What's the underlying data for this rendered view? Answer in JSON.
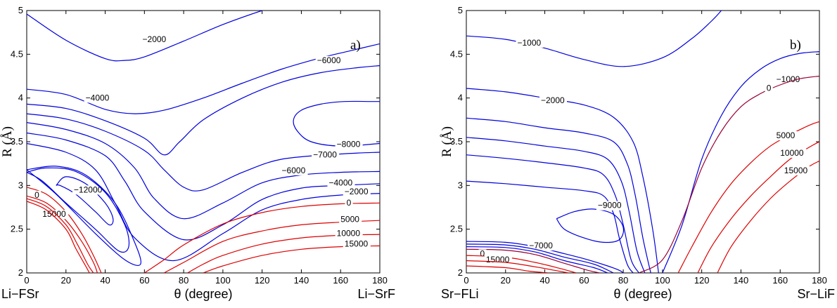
{
  "colors": {
    "negative_contour": "#0000dd",
    "positive_contour": "#dd0000",
    "zero_contour_b": "#990033"
  },
  "chart_data": [
    {
      "type": "line",
      "panel_label": "a)",
      "xlabel": "θ (degree)",
      "ylabel": "R (Å)",
      "xlim": [
        0,
        180
      ],
      "ylim": [
        2,
        5
      ],
      "x_ticks": [
        0,
        20,
        40,
        60,
        80,
        100,
        120,
        140,
        160,
        180
      ],
      "y_ticks": [
        2,
        2.5,
        3,
        3.5,
        4,
        4.5,
        5
      ],
      "left_corner_label": "Li−FSr",
      "right_corner_label": "Li−SrF",
      "series": [
        {
          "name": "−2000",
          "label": "−2000",
          "label_at": [
            59,
            4.64
          ],
          "x": [
            0,
            20,
            40,
            50,
            60,
            80,
            100,
            120,
            135
          ],
          "y": [
            4.96,
            4.66,
            4.45,
            4.43,
            4.47,
            4.65,
            4.84,
            5.0,
            5.1
          ]
        },
        {
          "name": "−4000",
          "label": "−4000",
          "label_at": [
            30,
            3.97
          ],
          "x": [
            0,
            20,
            40,
            55,
            70,
            90,
            110,
            130,
            150,
            165,
            180
          ],
          "y": [
            4.1,
            4.04,
            3.87,
            3.82,
            3.86,
            4.0,
            4.17,
            4.33,
            4.46,
            4.54,
            4.62
          ]
        },
        {
          "name": "−6000",
          "label": "−6000",
          "label_at": [
            148,
            4.4
          ],
          "x": [
            0,
            20,
            40,
            60,
            70,
            78,
            90,
            110,
            130,
            150,
            170,
            180
          ],
          "y": [
            3.93,
            3.88,
            3.74,
            3.54,
            3.35,
            3.5,
            3.75,
            4.0,
            4.18,
            4.29,
            4.35,
            4.37
          ]
        },
        {
          "name": "−8000",
          "label": "−8000",
          "label_at": [
            158,
            3.44
          ],
          "x": [
            180,
            160,
            145,
            138,
            136,
            140,
            150,
            162,
            175,
            180
          ],
          "y": [
            3.48,
            3.45,
            3.5,
            3.62,
            3.75,
            3.86,
            3.93,
            3.96,
            3.96,
            3.96
          ]
        },
        {
          "name": "−7000 (a)",
          "label": "−7000",
          "label_at": [
            146,
            3.32
          ],
          "x": [
            0,
            20,
            40,
            60,
            70,
            80,
            90,
            110,
            130,
            160,
            180
          ],
          "y": [
            3.82,
            3.76,
            3.62,
            3.4,
            3.18,
            2.98,
            2.95,
            3.15,
            3.3,
            3.36,
            3.38
          ]
        },
        {
          "name": "−6000 (b)",
          "label": "−6000",
          "label_at": [
            130,
            3.14
          ],
          "x": [
            0,
            20,
            40,
            55,
            65,
            80,
            100,
            120,
            140,
            160,
            180
          ],
          "y": [
            3.72,
            3.64,
            3.48,
            3.2,
            2.85,
            2.62,
            2.8,
            3.03,
            3.12,
            3.15,
            3.16
          ]
        },
        {
          "name": "−4000 (b)",
          "label": "−4000",
          "label_at": [
            154,
            3.0
          ],
          "x": [
            0,
            20,
            40,
            50,
            60,
            80,
            100,
            120,
            140,
            160,
            180
          ],
          "y": [
            3.6,
            3.52,
            3.34,
            3.05,
            2.7,
            2.38,
            2.55,
            2.84,
            2.97,
            3.0,
            3.02
          ]
        },
        {
          "name": "−2000 (b)",
          "label": "−2000",
          "label_at": [
            162,
            2.9
          ],
          "x": [
            0,
            20,
            35,
            45,
            55,
            75,
            100,
            120,
            140,
            160,
            180
          ],
          "y": [
            3.48,
            3.38,
            3.18,
            2.8,
            2.4,
            2.14,
            2.45,
            2.72,
            2.84,
            2.89,
            2.91
          ]
        },
        {
          "name": "−12000",
          "label": "−12000",
          "label_at": [
            24,
            2.92
          ],
          "x": [
            15,
            20,
            30,
            40,
            44,
            42,
            35,
            25,
            17,
            15
          ],
          "y": [
            3.0,
            3.1,
            3.02,
            2.8,
            2.62,
            2.55,
            2.7,
            2.9,
            3.0,
            3.0
          ]
        },
        {
          "name": "inner1",
          "label": "",
          "x": [
            0,
            10,
            25,
            40,
            50,
            52,
            47,
            35,
            20,
            8,
            0
          ],
          "y": [
            3.15,
            3.2,
            3.16,
            2.92,
            2.55,
            2.3,
            2.25,
            2.5,
            2.8,
            3.05,
            3.15
          ]
        },
        {
          "name": "inner2",
          "label": "",
          "x": [
            0,
            15,
            30,
            45,
            55,
            58,
            50,
            35,
            15,
            0
          ],
          "y": [
            3.18,
            3.22,
            3.12,
            2.8,
            2.35,
            2.1,
            2.15,
            2.45,
            2.9,
            3.18
          ]
        },
        {
          "name": "0 (a)",
          "label": "0",
          "label_at": [
            163,
            2.77
          ],
          "x": [
            60,
            70,
            80,
            100,
            120,
            140,
            160,
            180
          ],
          "y": [
            2.0,
            2.15,
            2.32,
            2.56,
            2.69,
            2.76,
            2.79,
            2.8
          ]
        },
        {
          "name": "5000 (a)",
          "label": "5000",
          "label_at": [
            160,
            2.58
          ],
          "x": [
            70,
            80,
            100,
            120,
            140,
            160,
            180
          ],
          "y": [
            2.0,
            2.12,
            2.36,
            2.48,
            2.55,
            2.58,
            2.6
          ]
        },
        {
          "name": "10000 (a)",
          "label": "10000",
          "label_at": [
            158,
            2.42
          ],
          "x": [
            82,
            90,
            100,
            120,
            140,
            160,
            180
          ],
          "y": [
            2.0,
            2.1,
            2.2,
            2.33,
            2.4,
            2.43,
            2.44
          ]
        },
        {
          "name": "15000 (a)",
          "label": "15000",
          "label_at": [
            162,
            2.3
          ],
          "x": [
            90,
            100,
            120,
            140,
            160,
            180
          ],
          "y": [
            2.0,
            2.08,
            2.2,
            2.27,
            2.3,
            2.31
          ]
        },
        {
          "name": "0 (left)",
          "label": "0",
          "label_at": [
            4,
            2.86
          ],
          "x": [
            0,
            10,
            20,
            28,
            34,
            38
          ],
          "y": [
            2.98,
            2.9,
            2.7,
            2.45,
            2.2,
            2.0
          ]
        },
        {
          "name": "15000 (left)",
          "label": "15000",
          "label_at": [
            8,
            2.64
          ],
          "x": [
            0,
            10,
            20,
            28,
            34,
            36
          ],
          "y": [
            2.88,
            2.8,
            2.6,
            2.36,
            2.12,
            2.0
          ]
        },
        {
          "name": "left3",
          "label": "",
          "x": [
            0,
            10,
            20,
            26,
            31,
            34
          ],
          "y": [
            2.85,
            2.76,
            2.55,
            2.32,
            2.1,
            2.0
          ]
        },
        {
          "name": "left4",
          "label": "",
          "x": [
            0,
            10,
            20,
            25,
            30,
            32
          ],
          "y": [
            2.82,
            2.72,
            2.5,
            2.28,
            2.08,
            2.0
          ]
        }
      ]
    },
    {
      "type": "line",
      "panel_label": "b)",
      "xlabel": "θ (degree)",
      "ylabel": "R (Å)",
      "xlim": [
        0,
        180
      ],
      "ylim": [
        2,
        5
      ],
      "x_ticks": [
        0,
        20,
        40,
        60,
        80,
        100,
        120,
        140,
        160,
        180
      ],
      "y_ticks": [
        2,
        2.5,
        3,
        3.5,
        4,
        4.5,
        5
      ],
      "left_corner_label": "Sr−FLi",
      "right_corner_label": "Sr−LiF",
      "series": [
        {
          "name": "−1000 (top)",
          "label": "−1000",
          "label_at": [
            26,
            4.6
          ],
          "x": [
            0,
            20,
            40,
            60,
            80,
            100,
            115,
            125,
            130
          ],
          "y": [
            4.71,
            4.67,
            4.57,
            4.44,
            4.36,
            4.46,
            4.68,
            4.88,
            5.0
          ]
        },
        {
          "name": "−1000 (right)",
          "label": "−1000",
          "label_at": [
            158,
            4.18
          ],
          "x": [
            100,
            110,
            120,
            130,
            140,
            150,
            160,
            170,
            180
          ],
          "y": [
            2.0,
            2.55,
            3.3,
            3.8,
            4.13,
            4.33,
            4.45,
            4.51,
            4.53
          ]
        },
        {
          "name": "−2000",
          "label": "−2000",
          "label_at": [
            38,
            3.94
          ],
          "x": [
            0,
            20,
            40,
            60,
            75,
            85,
            90,
            95,
            98
          ],
          "y": [
            4.11,
            4.07,
            4.0,
            3.92,
            3.78,
            3.5,
            3.1,
            2.5,
            2.0
          ]
        },
        {
          "name": "c3",
          "label": "",
          "x": [
            0,
            20,
            40,
            60,
            75,
            82,
            86,
            90,
            94
          ],
          "y": [
            3.77,
            3.73,
            3.66,
            3.6,
            3.5,
            3.25,
            2.9,
            2.4,
            2.0
          ]
        },
        {
          "name": "c4",
          "label": "",
          "x": [
            0,
            20,
            40,
            60,
            72,
            79,
            83,
            87,
            91
          ],
          "y": [
            3.55,
            3.51,
            3.45,
            3.39,
            3.3,
            3.05,
            2.7,
            2.25,
            2.0
          ]
        },
        {
          "name": "c5",
          "label": "",
          "x": [
            0,
            20,
            40,
            60,
            70,
            76,
            80,
            84,
            88
          ],
          "y": [
            3.35,
            3.31,
            3.26,
            3.2,
            3.12,
            2.88,
            2.55,
            2.15,
            2.0
          ]
        },
        {
          "name": "c6",
          "label": "",
          "x": [
            0,
            20,
            40,
            60,
            70,
            75,
            78,
            82,
            85
          ],
          "y": [
            3.05,
            3.02,
            2.98,
            2.94,
            2.88,
            2.68,
            2.4,
            2.1,
            2.0
          ]
        },
        {
          "name": "−9000",
          "label": "−9000",
          "label_at": [
            67,
            2.74
          ],
          "x": [
            46,
            55,
            65,
            75,
            80,
            78,
            70,
            60,
            50,
            46
          ],
          "y": [
            2.62,
            2.7,
            2.73,
            2.67,
            2.52,
            2.38,
            2.35,
            2.4,
            2.5,
            2.62
          ]
        },
        {
          "name": "−7000",
          "label": "−7000",
          "label_at": [
            32,
            2.28
          ],
          "x": [
            0,
            20,
            35,
            50,
            62,
            72,
            78,
            80
          ],
          "y": [
            2.36,
            2.35,
            2.3,
            2.22,
            2.15,
            2.08,
            2.03,
            2.0
          ]
        },
        {
          "name": "c8",
          "label": "",
          "x": [
            0,
            20,
            35,
            50,
            65,
            75
          ],
          "y": [
            2.33,
            2.32,
            2.27,
            2.18,
            2.1,
            2.0
          ]
        },
        {
          "name": "c9",
          "label": "",
          "x": [
            0,
            20,
            35,
            50,
            65,
            72
          ],
          "y": [
            2.3,
            2.29,
            2.24,
            2.14,
            2.06,
            2.0
          ]
        },
        {
          "name": "0 (left)",
          "label": "0",
          "label_at": [
            7,
            2.19
          ],
          "x": [
            0,
            20,
            35,
            50,
            62,
            68
          ],
          "y": [
            2.27,
            2.26,
            2.21,
            2.11,
            2.03,
            2.0
          ]
        },
        {
          "name": "15000 (left)",
          "label": "15000",
          "label_at": [
            10,
            2.12
          ],
          "x": [
            0,
            20,
            35,
            48,
            56
          ],
          "y": [
            2.2,
            2.18,
            2.12,
            2.05,
            2.0
          ]
        },
        {
          "name": "r2",
          "label": "",
          "x": [
            0,
            20,
            35,
            45,
            52
          ],
          "y": [
            2.14,
            2.12,
            2.07,
            2.03,
            2.0
          ]
        },
        {
          "name": "r3",
          "label": "",
          "x": [
            0,
            20,
            32,
            42
          ],
          "y": [
            2.08,
            2.06,
            2.02,
            2.0
          ]
        },
        {
          "name": "0 (right)",
          "label": "0",
          "label_at": [
            153,
            4.08
          ],
          "x": [
            88,
            100,
            110,
            120,
            130,
            140,
            150,
            160,
            170,
            180
          ],
          "y": [
            2.0,
            2.15,
            2.6,
            3.2,
            3.62,
            3.9,
            4.05,
            4.15,
            4.22,
            4.25
          ]
        },
        {
          "name": "5000",
          "label": "5000",
          "label_at": [
            158,
            3.54
          ],
          "x": [
            108,
            115,
            125,
            135,
            145,
            155,
            165,
            175,
            180
          ],
          "y": [
            2.0,
            2.3,
            2.7,
            3.02,
            3.26,
            3.45,
            3.58,
            3.69,
            3.73
          ]
        },
        {
          "name": "10000",
          "label": "10000",
          "label_at": [
            160,
            3.34
          ],
          "x": [
            118,
            125,
            135,
            145,
            155,
            165,
            175,
            180
          ],
          "y": [
            2.0,
            2.3,
            2.62,
            2.88,
            3.1,
            3.3,
            3.44,
            3.5
          ]
        },
        {
          "name": "15000",
          "label": "15000",
          "label_at": [
            162,
            3.14
          ],
          "x": [
            128,
            135,
            145,
            155,
            165,
            175,
            180
          ],
          "y": [
            2.0,
            2.3,
            2.6,
            2.85,
            3.05,
            3.22,
            3.28
          ]
        }
      ]
    }
  ]
}
